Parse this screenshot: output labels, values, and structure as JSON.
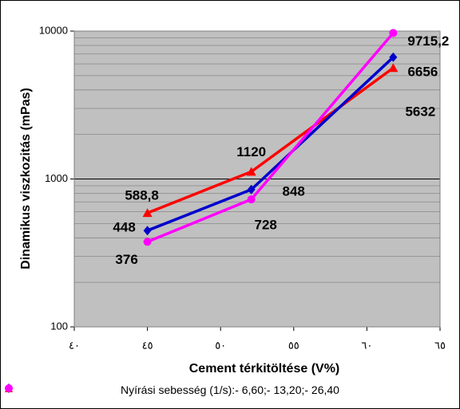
{
  "chart_data": {
    "type": "line",
    "y_label": "Dinamikus viszkozitás (mPas)",
    "x_label": "Cement térkitöltése (V%)",
    "legend_title": "Nyírási sebesség (1/s):",
    "x": [
      45,
      52.1,
      61.8
    ],
    "series": [
      {
        "name": "- 6,60;",
        "color": "#ff0000",
        "marker": "triangle",
        "values": [
          588.8,
          1120,
          5632
        ],
        "value_labels": [
          "588,8",
          "1120",
          "5632"
        ]
      },
      {
        "name": "- 13,20;",
        "color": "#0000cc",
        "marker": "diamond",
        "values": [
          448,
          848,
          6656
        ],
        "value_labels": [
          "448",
          "848",
          "6656"
        ]
      },
      {
        "name": "- 26,40",
        "color": "#ff00ff",
        "marker": "circle",
        "values": [
          376,
          728,
          9715.2
        ],
        "value_labels": [
          "376",
          "728",
          "9715,2"
        ]
      }
    ],
    "xlim": [
      40,
      65
    ],
    "xticks": [
      {
        "value": 40,
        "label": "٤٠"
      },
      {
        "value": 45,
        "label": "٤٥"
      },
      {
        "value": 50,
        "label": "٥٠"
      },
      {
        "value": 55,
        "label": "٥٥"
      },
      {
        "value": 60,
        "label": "٦٠"
      },
      {
        "value": 65,
        "label": "٦٥"
      }
    ],
    "ylim": [
      100,
      10000
    ],
    "yticks": [
      100,
      1000,
      10000
    ],
    "y_minor_ticks": [
      200,
      300,
      400,
      500,
      600,
      700,
      800,
      900,
      2000,
      3000,
      4000,
      5000,
      6000,
      7000,
      8000,
      9000
    ],
    "log_y": true,
    "grid": true
  }
}
